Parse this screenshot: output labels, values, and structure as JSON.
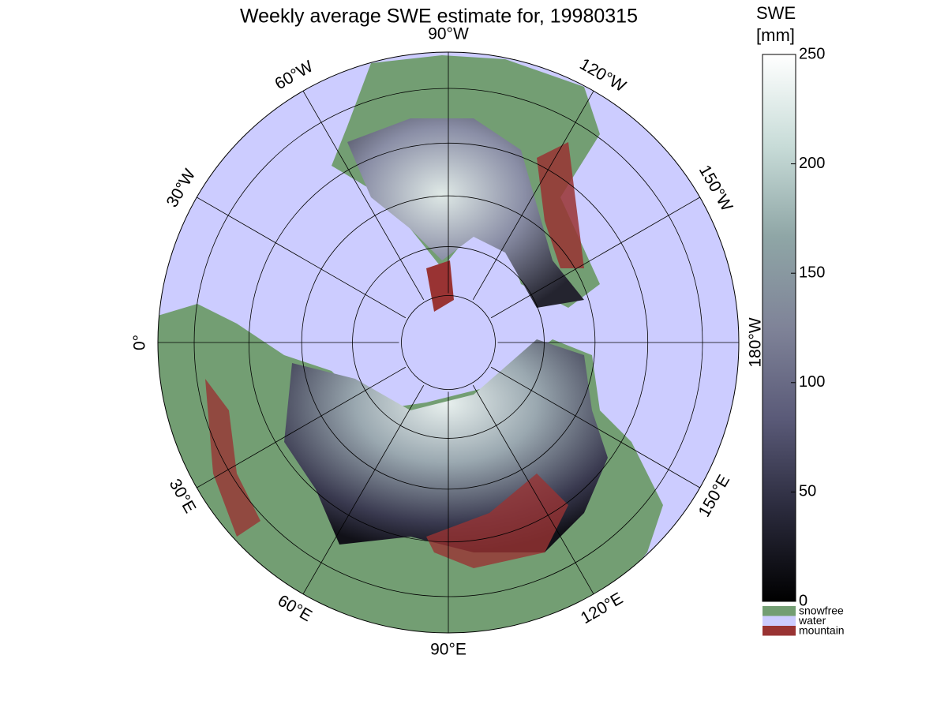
{
  "title": "Weekly average SWE estimate for, 19980315",
  "map": {
    "projection": "north-polar",
    "graticule_step": 30,
    "longitude_labels": [
      {
        "lon": -90,
        "label": "90°W"
      },
      {
        "lon": -120,
        "label": "120°W"
      },
      {
        "lon": -150,
        "label": "150°W"
      },
      {
        "lon": 180,
        "label": "180°W"
      },
      {
        "lon": 150,
        "label": "150°E"
      },
      {
        "lon": 120,
        "label": "120°E"
      },
      {
        "lon": 90,
        "label": "90°E"
      },
      {
        "lon": 60,
        "label": "60°E"
      },
      {
        "lon": 30,
        "label": "30°E"
      },
      {
        "lon": 0,
        "label": "0°"
      },
      {
        "lon": -30,
        "label": "30°W"
      },
      {
        "lon": -60,
        "label": "60°W"
      }
    ]
  },
  "colorbar": {
    "label": [
      "SWE",
      "[mm]"
    ],
    "lim": [
      0,
      250
    ],
    "ticks": [
      0,
      50,
      100,
      150,
      200,
      250
    ],
    "colors": [
      "#000000",
      "#2a2a3c",
      "#5a5a78",
      "#7f8398",
      "#8fa6a6",
      "#c8dcd8",
      "#ffffff"
    ]
  },
  "legend": [
    {
      "name": "snowfree",
      "color": "#739e73"
    },
    {
      "name": "water",
      "color": "#ccccff"
    },
    {
      "name": "mountain",
      "color": "#993333"
    }
  ]
}
